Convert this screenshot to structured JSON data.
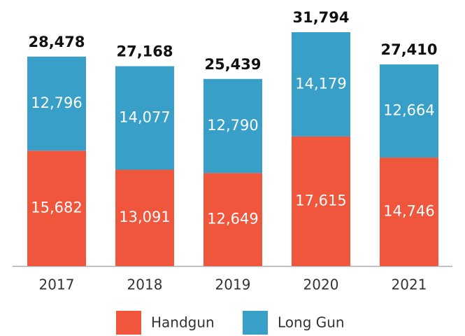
{
  "chart_data": {
    "type": "stacked_bar",
    "categories": [
      "2017",
      "2018",
      "2019",
      "2020",
      "2021"
    ],
    "series": [
      {
        "name": "Handgun",
        "color": "#f0563c",
        "values": [
          15682,
          13091,
          12649,
          17615,
          14746
        ],
        "value_labels": [
          "15,682",
          "13,091",
          "12,649",
          "17,615",
          "14,746"
        ]
      },
      {
        "name": "Long Gun",
        "color": "#38a0c8",
        "values": [
          12796,
          14077,
          12790,
          14179,
          12664
        ],
        "value_labels": [
          "12,796",
          "14,077",
          "12,790",
          "14,179",
          "12,664"
        ]
      }
    ],
    "total_labels": [
      "28,478",
      "27,168",
      "25,439",
      "31,794",
      "27,410"
    ]
  }
}
